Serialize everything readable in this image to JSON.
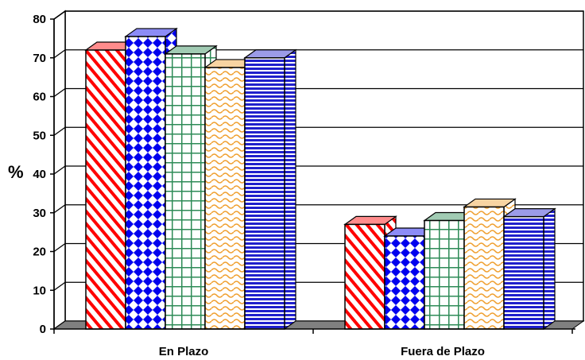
{
  "chart_data": {
    "type": "bar",
    "categories": [
      "En Plazo",
      "Fuera de Plazo"
    ],
    "ylabel": "%",
    "ylim": [
      0,
      80
    ],
    "yticks": [
      "0",
      "10",
      "20",
      "30",
      "40",
      "50",
      "60",
      "70",
      "80"
    ],
    "grid": true,
    "legend": "none",
    "series": [
      {
        "values": [
          72,
          27
        ],
        "color": "#ff0000",
        "pattern": "diagonal-stripes"
      },
      {
        "values": [
          75.5,
          24
        ],
        "color": "#0000ee",
        "pattern": "diamonds"
      },
      {
        "values": [
          71,
          28
        ],
        "color": "#2e8b57",
        "pattern": "grid"
      },
      {
        "values": [
          67.5,
          31.5
        ],
        "color": "#f0a030",
        "pattern": "waves"
      },
      {
        "values": [
          70,
          29
        ],
        "color": "#2020cc",
        "pattern": "horizontal-stripes"
      }
    ]
  }
}
